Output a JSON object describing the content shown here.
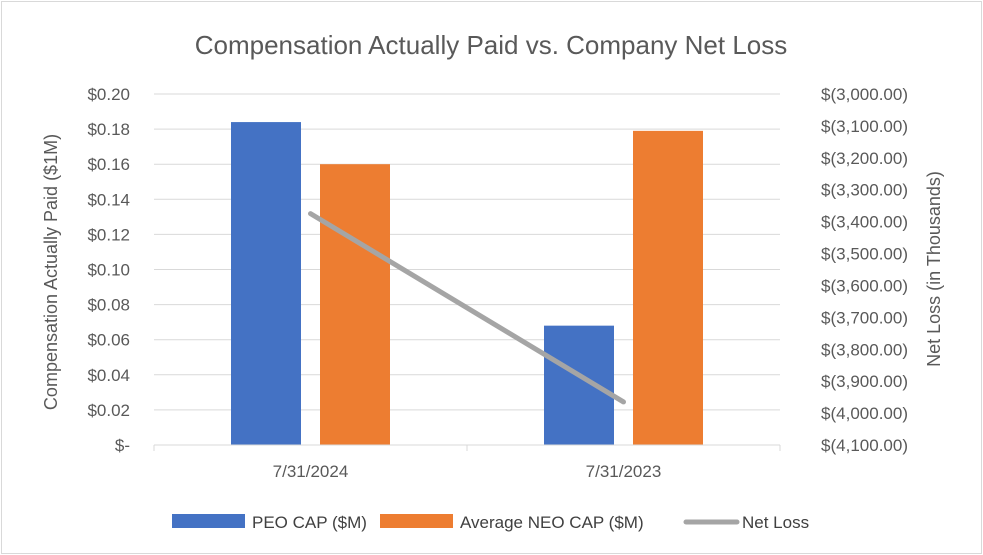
{
  "chart_data": {
    "type": "bar",
    "title": "Compensation Actually Paid vs. Company Net Loss",
    "categories": [
      "7/31/2024",
      "7/31/2023"
    ],
    "series": [
      {
        "name": "PEO CAP ($M)",
        "type": "bar",
        "axis": "left",
        "color": "#4472C4",
        "values": [
          0.184,
          0.068
        ]
      },
      {
        "name": "Average NEO CAP ($M)",
        "type": "bar",
        "axis": "left",
        "color": "#ED7D31",
        "values": [
          0.16,
          0.179
        ]
      },
      {
        "name": "Net Loss",
        "type": "line",
        "axis": "right",
        "color": "#A5A5A5",
        "values": [
          -3375,
          -3965
        ]
      }
    ],
    "y_left": {
      "label": "Compensation Actually Paid ($1M)",
      "range": [
        0,
        0.2
      ],
      "ticks": [
        0,
        0.02,
        0.04,
        0.06,
        0.08,
        0.1,
        0.12,
        0.14,
        0.16,
        0.18,
        0.2
      ],
      "tick_labels": [
        "$-",
        "$0.02",
        "$0.04",
        "$0.06",
        "$0.08",
        "$0.10",
        "$0.12",
        "$0.14",
        "$0.16",
        "$0.18",
        "$0.20"
      ]
    },
    "y_right": {
      "label": "Net Loss (in Thousands)",
      "range": [
        -4100,
        -3000
      ],
      "ticks": [
        -4100,
        -4000,
        -3900,
        -3800,
        -3700,
        -3600,
        -3500,
        -3400,
        -3300,
        -3200,
        -3100,
        -3000
      ],
      "tick_labels": [
        "$(4,100.00)",
        "$(4,000.00)",
        "$(3,900.00)",
        "$(3,800.00)",
        "$(3,700.00)",
        "$(3,600.00)",
        "$(3,500.00)",
        "$(3,400.00)",
        "$(3,300.00)",
        "$(3,200.00)",
        "$(3,100.00)",
        "$(3,000.00)"
      ]
    },
    "grid": true,
    "legend": "bottom"
  }
}
